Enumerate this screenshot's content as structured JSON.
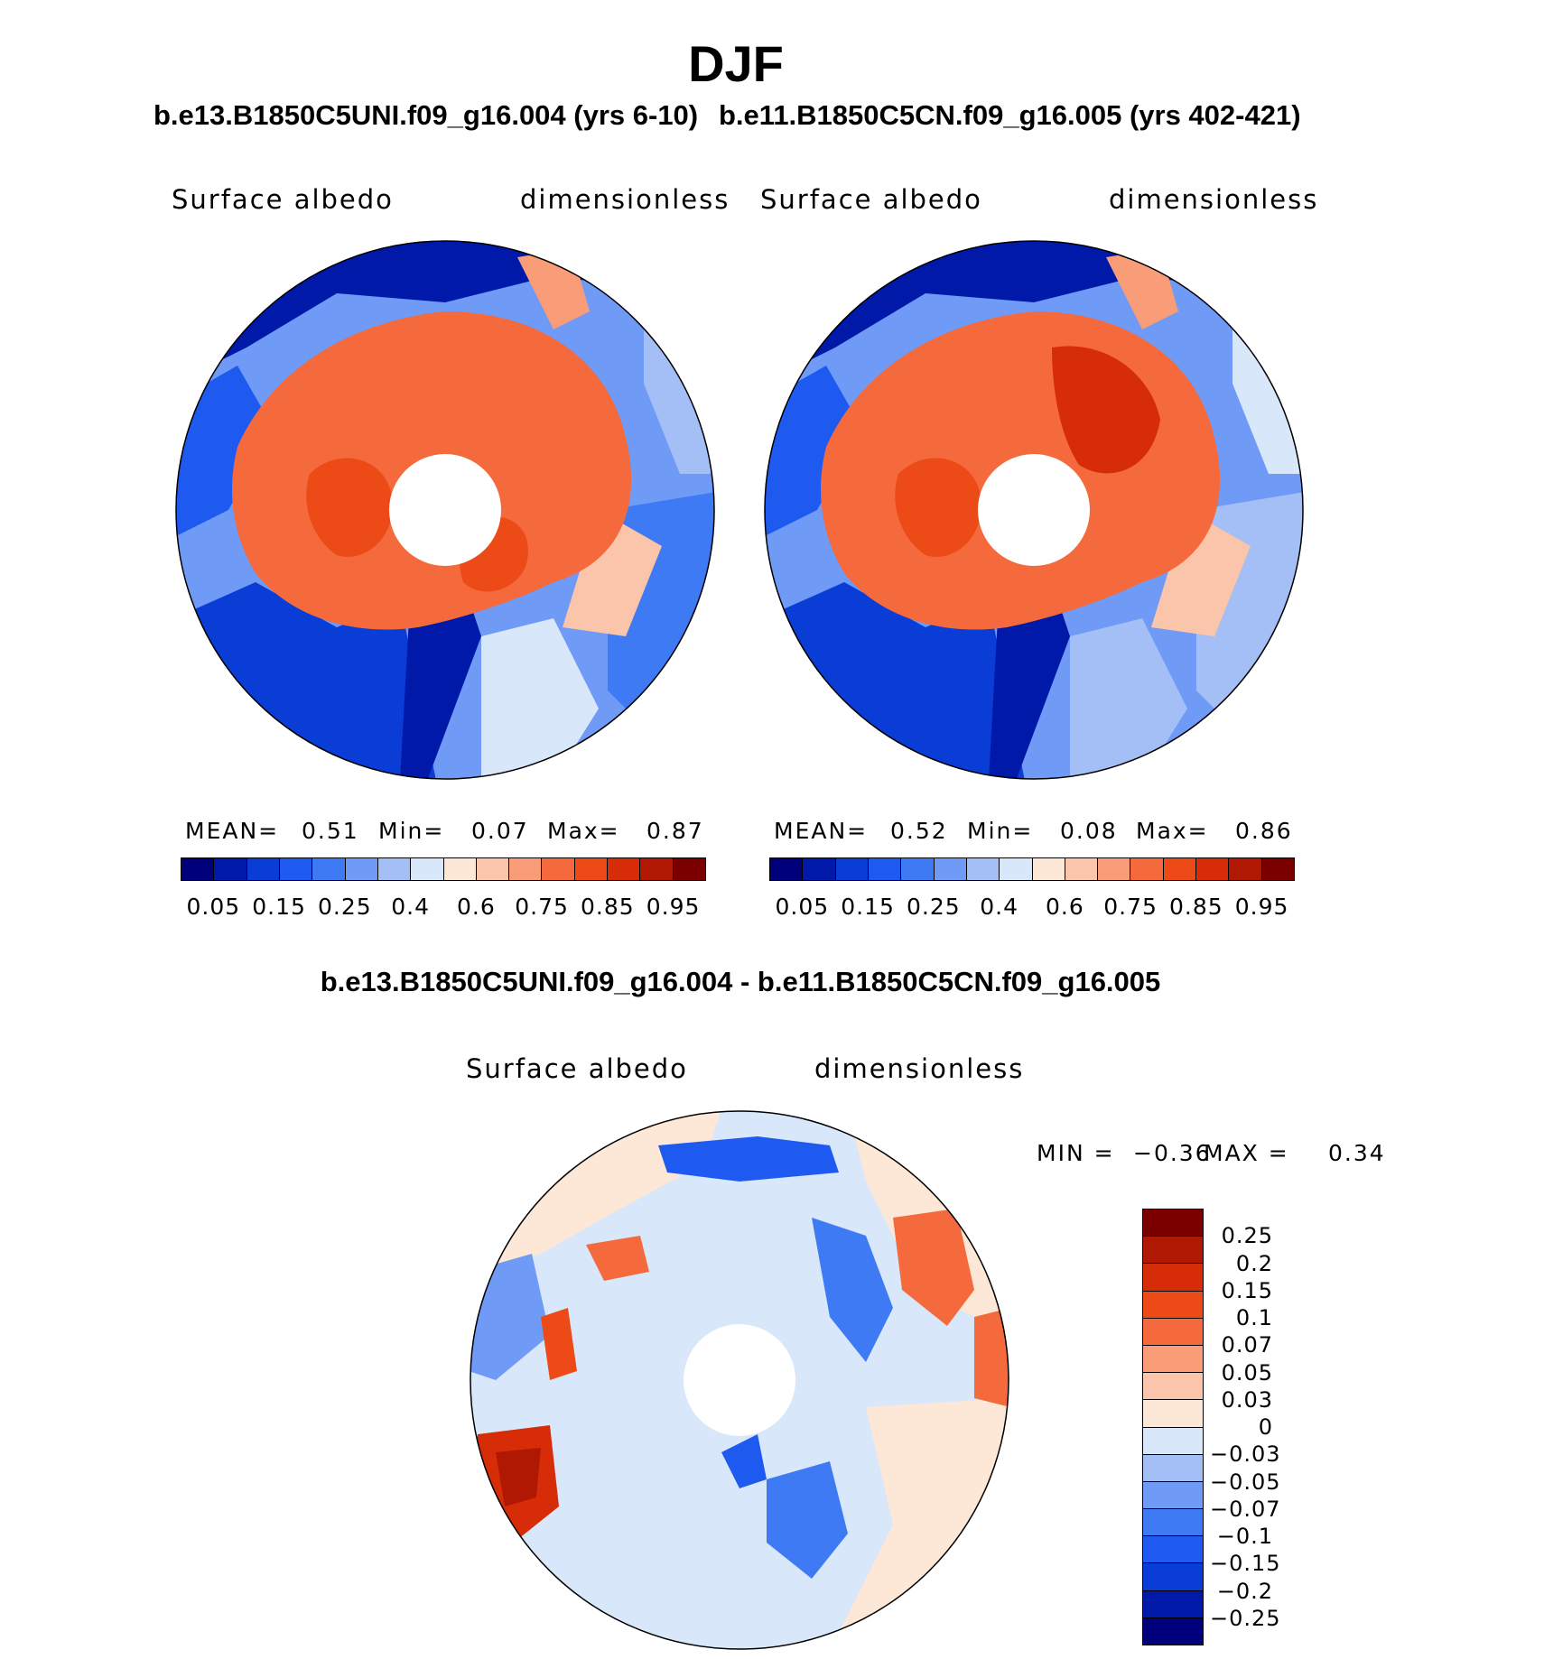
{
  "season_title": "DJF",
  "panels": [
    {
      "case_title": "b.e13.B1850C5UNI.f09_g16.004 (yrs 6-10)",
      "variable": "Surface albedo",
      "units": "dimensionless",
      "stats": {
        "mean_label": "MEAN=",
        "mean": "0.51",
        "min_label": "Min=",
        "min": "0.07",
        "max_label": "Max=",
        "max": "0.87"
      }
    },
    {
      "case_title": "b.e11.B1850C5CN.f09_g16.005 (yrs 402-421)",
      "variable": "Surface albedo",
      "units": "dimensionless",
      "stats": {
        "mean_label": "MEAN=",
        "mean": "0.52",
        "min_label": "Min=",
        "min": "0.08",
        "max_label": "Max=",
        "max": "0.86"
      }
    }
  ],
  "colorbar": {
    "colors": [
      "#00007a",
      "#0019a8",
      "#0a3cd6",
      "#1e5af0",
      "#3f7af5",
      "#6f9af6",
      "#a4bff6",
      "#d8e7fa",
      "#fde8d8",
      "#fac5aa",
      "#f99d78",
      "#f46a3c",
      "#ec4a17",
      "#d62c08",
      "#b01804",
      "#7a0000"
    ],
    "tick_labels": [
      "0.05",
      "0.15",
      "0.25",
      "0.4",
      "0.6",
      "0.75",
      "0.85",
      "0.95"
    ]
  },
  "difference": {
    "title": "b.e13.B1850C5UNI.f09_g16.004 - b.e11.B1850C5CN.f09_g16.005",
    "variable": "Surface albedo",
    "units": "dimensionless",
    "min_label": "MIN =",
    "min": "−0.36",
    "max_label": "MAX =",
    "max": "0.34",
    "colorbar": {
      "colors": [
        "#7a0000",
        "#b01804",
        "#d62c08",
        "#ec4a17",
        "#f46a3c",
        "#f99d78",
        "#fac5aa",
        "#fde8d8",
        "#d8e7fa",
        "#a4bff6",
        "#6f9af6",
        "#3f7af5",
        "#1e5af0",
        "#0a3cd6",
        "#0019a8",
        "#00007a"
      ],
      "tick_labels": [
        "0.25",
        "0.2",
        "0.15",
        "0.1",
        "0.07",
        "0.05",
        "0.03",
        "0",
        "−0.03",
        "−0.05",
        "−0.07",
        "−0.1",
        "−0.15",
        "−0.2",
        "−0.25"
      ]
    }
  }
}
